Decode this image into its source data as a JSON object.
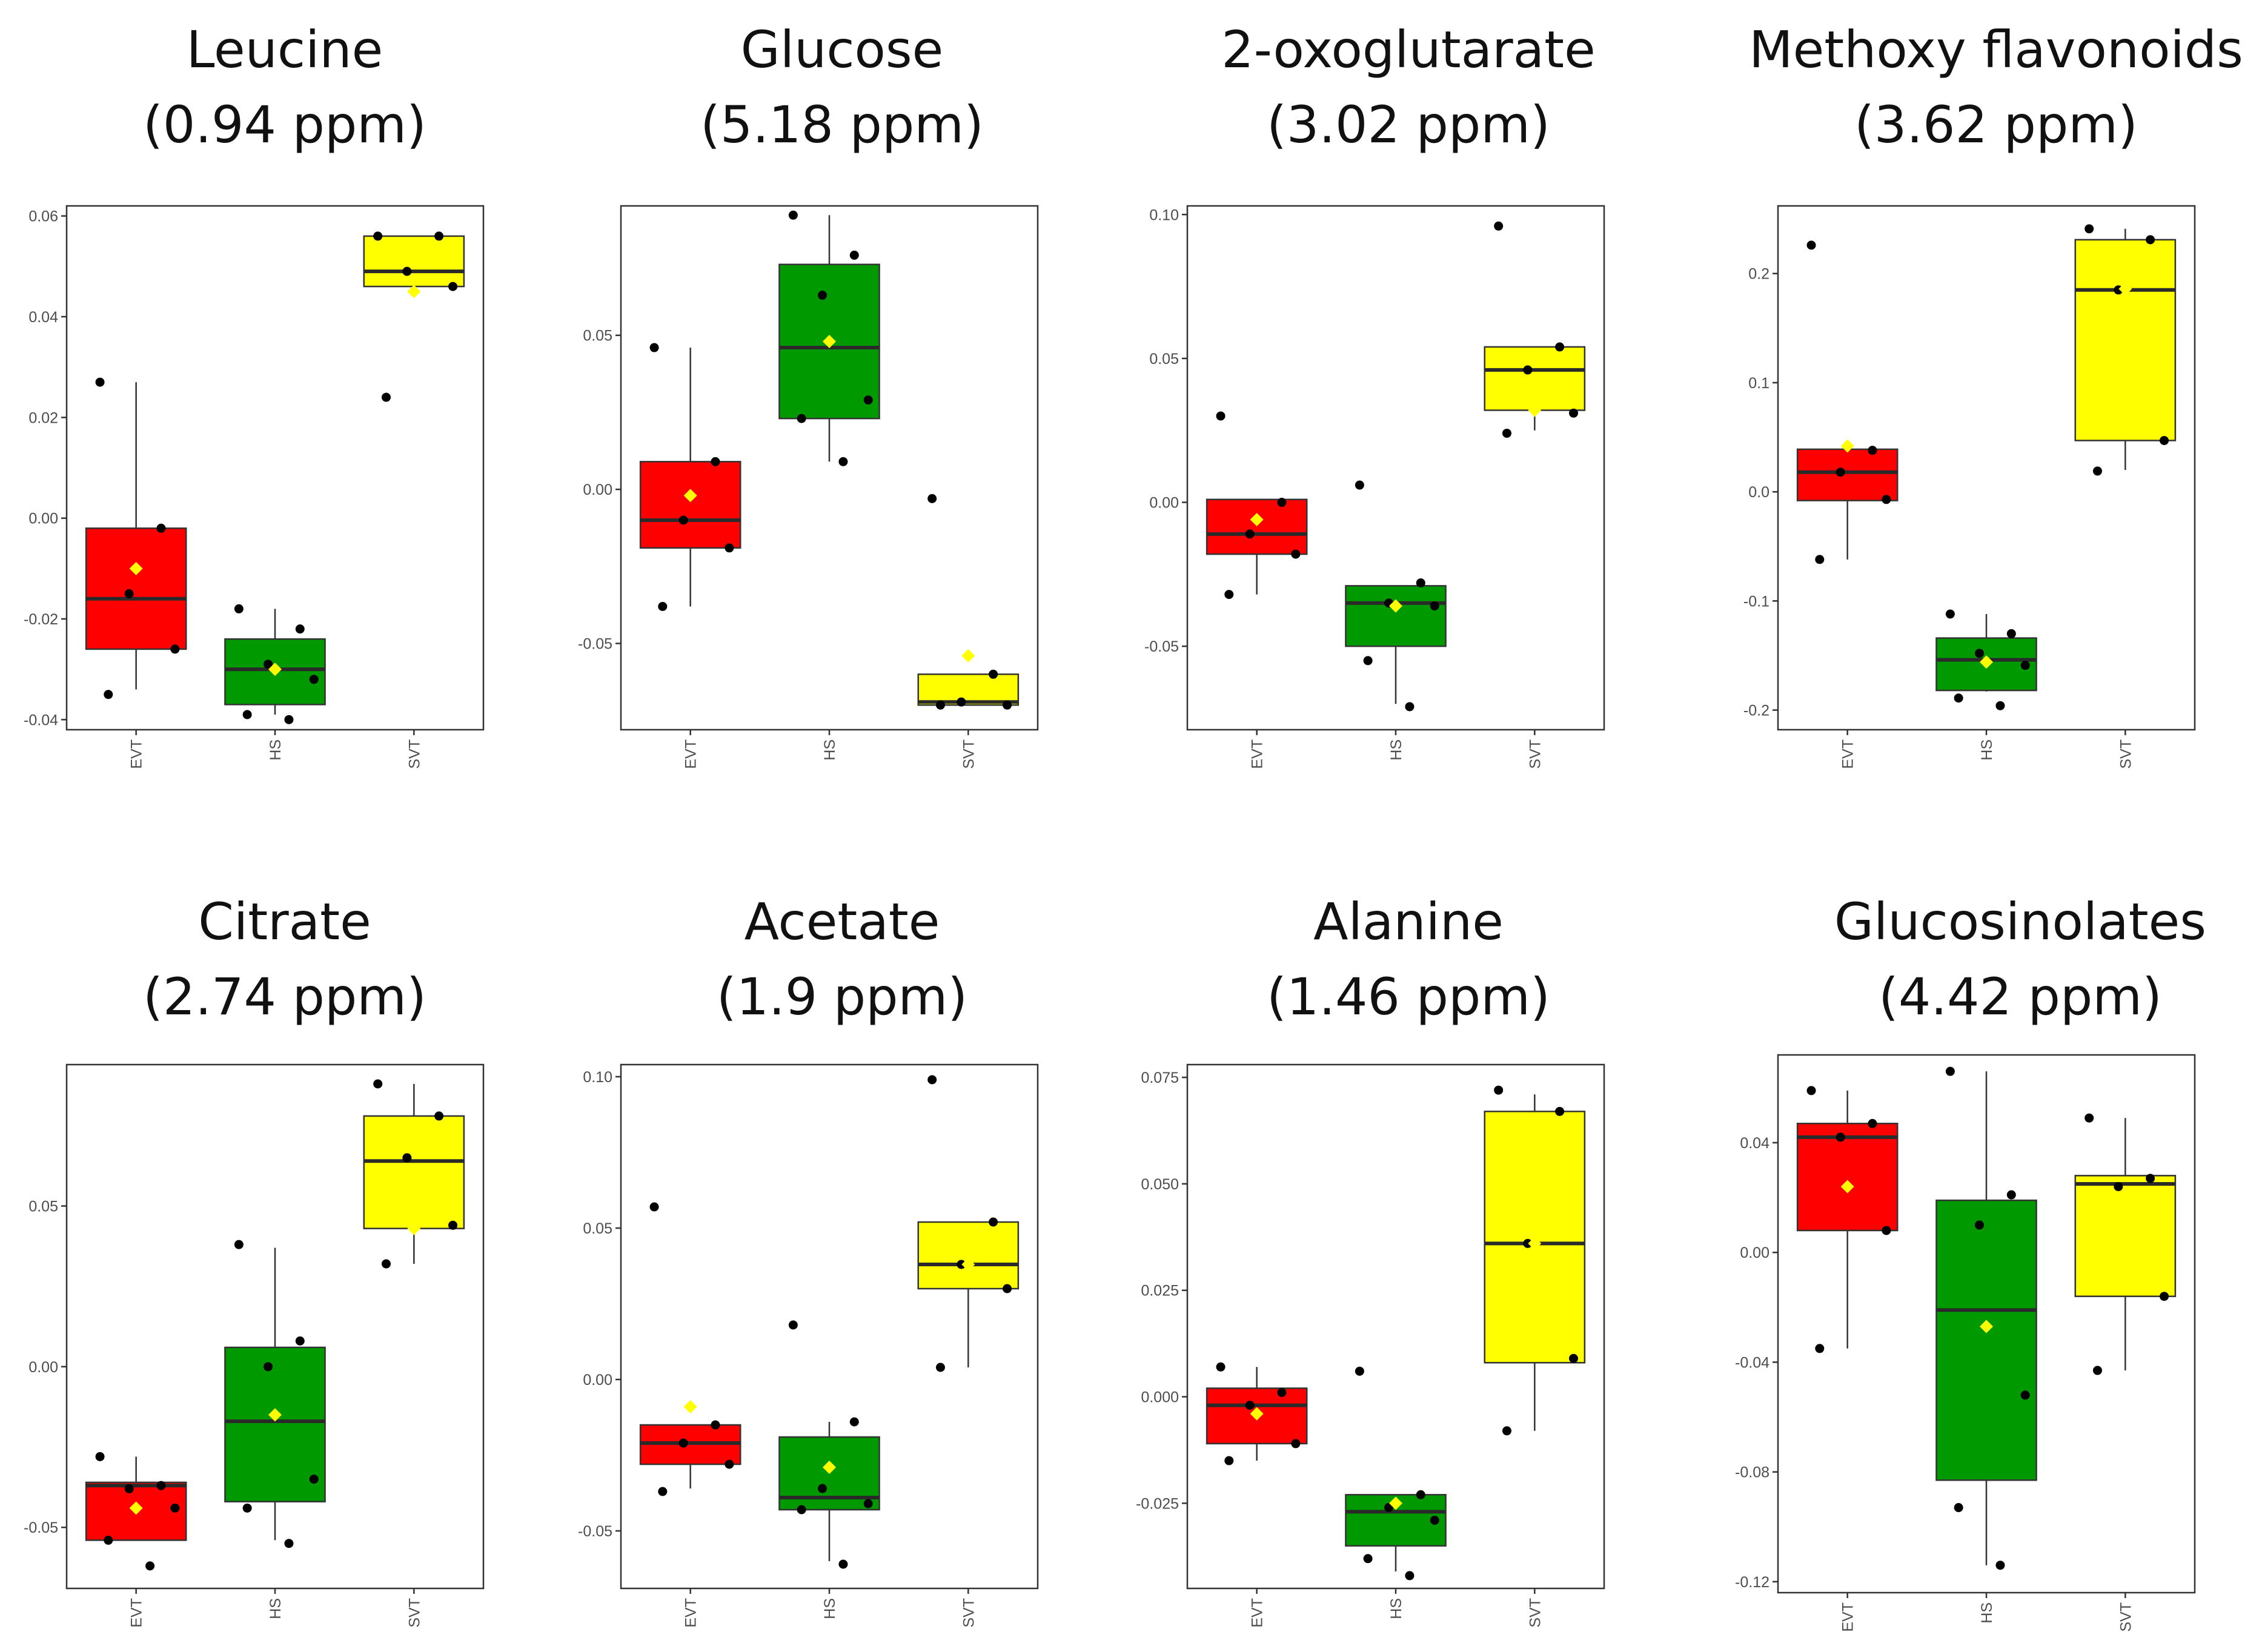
{
  "figure": {
    "colors": {
      "EVT": "#ff0000",
      "HS": "#009900",
      "SVT": "#ffff00",
      "mean_marker": "#ffff00",
      "points": "#000000"
    }
  },
  "chart_data": [
    {
      "type": "boxplot",
      "title": "Leucine",
      "subtitle": "(0.94 ppm)",
      "categories": [
        "EVT",
        "HS",
        "SVT"
      ],
      "ylim": [
        -0.042,
        0.062
      ],
      "y_ticks": [
        -0.04,
        -0.02,
        0.0,
        0.02,
        0.04,
        0.06
      ],
      "y_tick_labels": [
        "-0.04",
        "-0.02",
        "0.00",
        "0.02",
        "0.04",
        "0.06"
      ],
      "boxes": [
        {
          "group": "EVT",
          "whisker_low": -0.034,
          "q1": -0.026,
          "median": -0.016,
          "q3": -0.002,
          "whisker_high": 0.027,
          "mean": -0.01
        },
        {
          "group": "HS",
          "whisker_low": -0.039,
          "q1": -0.037,
          "median": -0.03,
          "q3": -0.024,
          "whisker_high": -0.018,
          "mean": -0.03
        },
        {
          "group": "SVT",
          "whisker_low": 0.046,
          "q1": 0.046,
          "median": 0.049,
          "q3": 0.056,
          "whisker_high": 0.056,
          "mean": 0.045
        }
      ],
      "points": [
        {
          "group": "EVT",
          "values": [
            0.027,
            -0.002,
            -0.015,
            -0.026,
            -0.035
          ]
        },
        {
          "group": "HS",
          "values": [
            -0.018,
            -0.022,
            -0.029,
            -0.032,
            -0.039,
            -0.04
          ]
        },
        {
          "group": "SVT",
          "values": [
            0.056,
            0.056,
            0.049,
            0.046,
            0.024
          ]
        }
      ]
    },
    {
      "type": "boxplot",
      "title": "Glucose",
      "subtitle": "(5.18 ppm)",
      "categories": [
        "EVT",
        "HS",
        "SVT"
      ],
      "ylim": [
        -0.078,
        0.092
      ],
      "y_ticks": [
        -0.05,
        0.0,
        0.05
      ],
      "y_tick_labels": [
        "-0.05",
        "0.00",
        "0.05"
      ],
      "boxes": [
        {
          "group": "EVT",
          "whisker_low": -0.038,
          "q1": -0.019,
          "median": -0.01,
          "q3": 0.009,
          "whisker_high": 0.046,
          "mean": -0.002
        },
        {
          "group": "HS",
          "whisker_low": 0.009,
          "q1": 0.023,
          "median": 0.046,
          "q3": 0.073,
          "whisker_high": 0.089,
          "mean": 0.048
        },
        {
          "group": "SVT",
          "whisker_low": -0.07,
          "q1": -0.07,
          "median": -0.069,
          "q3": -0.06,
          "whisker_high": -0.06,
          "mean": -0.054
        }
      ],
      "points": [
        {
          "group": "EVT",
          "values": [
            0.046,
            0.009,
            -0.01,
            -0.019,
            -0.038
          ]
        },
        {
          "group": "HS",
          "values": [
            0.089,
            0.076,
            0.063,
            0.029,
            0.023,
            0.009
          ]
        },
        {
          "group": "SVT",
          "values": [
            -0.003,
            -0.06,
            -0.069,
            -0.07,
            -0.07
          ]
        }
      ]
    },
    {
      "type": "boxplot",
      "title": "2-oxoglutarate",
      "subtitle": "(3.02 ppm)",
      "categories": [
        "EVT",
        "HS",
        "SVT"
      ],
      "ylim": [
        -0.079,
        0.103
      ],
      "y_ticks": [
        -0.05,
        0.0,
        0.05,
        0.1
      ],
      "y_tick_labels": [
        "-0.05",
        "0.00",
        "0.05",
        "0.10"
      ],
      "boxes": [
        {
          "group": "EVT",
          "whisker_low": -0.032,
          "q1": -0.018,
          "median": -0.011,
          "q3": 0.001,
          "whisker_high": 0.001,
          "mean": -0.006
        },
        {
          "group": "HS",
          "whisker_low": -0.07,
          "q1": -0.05,
          "median": -0.035,
          "q3": -0.029,
          "whisker_high": -0.029,
          "mean": -0.036
        },
        {
          "group": "SVT",
          "whisker_low": 0.025,
          "q1": 0.032,
          "median": 0.046,
          "q3": 0.054,
          "whisker_high": 0.054,
          "mean": 0.032
        }
      ],
      "points": [
        {
          "group": "EVT",
          "values": [
            0.03,
            0.0,
            -0.011,
            -0.018,
            -0.032
          ]
        },
        {
          "group": "HS",
          "values": [
            0.006,
            -0.028,
            -0.035,
            -0.036,
            -0.055,
            -0.071
          ]
        },
        {
          "group": "SVT",
          "values": [
            0.096,
            0.054,
            0.046,
            0.031,
            0.024
          ]
        }
      ]
    },
    {
      "type": "boxplot",
      "title": "Methoxy flavonoids",
      "subtitle": "(3.62 ppm)",
      "categories": [
        "EVT",
        "HS",
        "SVT"
      ],
      "ylim": [
        -0.218,
        0.262
      ],
      "y_ticks": [
        -0.2,
        -0.1,
        0.0,
        0.1,
        0.2
      ],
      "y_tick_labels": [
        "-0.2",
        "-0.1",
        "0.0",
        "0.1",
        "0.2"
      ],
      "boxes": [
        {
          "group": "EVT",
          "whisker_low": -0.062,
          "q1": -0.008,
          "median": 0.018,
          "q3": 0.039,
          "whisker_high": 0.039,
          "mean": 0.042
        },
        {
          "group": "HS",
          "whisker_low": -0.183,
          "q1": -0.182,
          "median": -0.154,
          "q3": -0.134,
          "whisker_high": -0.112,
          "mean": -0.156
        },
        {
          "group": "SVT",
          "whisker_low": 0.02,
          "q1": 0.047,
          "median": 0.185,
          "q3": 0.231,
          "whisker_high": 0.241,
          "mean": 0.186
        }
      ],
      "points": [
        {
          "group": "EVT",
          "values": [
            0.226,
            0.038,
            0.018,
            -0.007,
            -0.062
          ]
        },
        {
          "group": "HS",
          "values": [
            -0.112,
            -0.13,
            -0.148,
            -0.159,
            -0.189,
            -0.196
          ]
        },
        {
          "group": "SVT",
          "values": [
            0.241,
            0.231,
            0.185,
            0.047,
            0.019
          ]
        }
      ]
    },
    {
      "type": "boxplot",
      "title": "Citrate",
      "subtitle": "(2.74 ppm)",
      "categories": [
        "EVT",
        "HS",
        "SVT"
      ],
      "ylim": [
        -0.069,
        0.094
      ],
      "y_ticks": [
        -0.05,
        0.0,
        0.05
      ],
      "y_tick_labels": [
        "-0.05",
        "0.00",
        "0.05"
      ],
      "boxes": [
        {
          "group": "EVT",
          "whisker_low": -0.054,
          "q1": -0.054,
          "median": -0.037,
          "q3": -0.036,
          "whisker_high": -0.028,
          "mean": -0.044
        },
        {
          "group": "HS",
          "whisker_low": -0.054,
          "q1": -0.042,
          "median": -0.017,
          "q3": 0.006,
          "whisker_high": 0.037,
          "mean": -0.015
        },
        {
          "group": "SVT",
          "whisker_low": 0.032,
          "q1": 0.043,
          "median": 0.064,
          "q3": 0.078,
          "whisker_high": 0.088,
          "mean": 0.043
        }
      ],
      "points": [
        {
          "group": "EVT",
          "values": [
            -0.028,
            -0.037,
            -0.038,
            -0.044,
            -0.054,
            -0.062
          ]
        },
        {
          "group": "HS",
          "values": [
            0.038,
            0.008,
            0.0,
            -0.035,
            -0.044,
            -0.055
          ]
        },
        {
          "group": "SVT",
          "values": [
            0.088,
            0.078,
            0.065,
            0.044,
            0.032
          ]
        }
      ]
    },
    {
      "type": "boxplot",
      "title": "Acetate",
      "subtitle": "(1.9 ppm)",
      "categories": [
        "EVT",
        "HS",
        "SVT"
      ],
      "ylim": [
        -0.069,
        0.104
      ],
      "y_ticks": [
        -0.05,
        0.0,
        0.05,
        0.1
      ],
      "y_tick_labels": [
        "-0.05",
        "0.00",
        "0.05",
        "0.10"
      ],
      "boxes": [
        {
          "group": "EVT",
          "whisker_low": -0.036,
          "q1": -0.028,
          "median": -0.021,
          "q3": -0.015,
          "whisker_high": -0.015,
          "mean": -0.009
        },
        {
          "group": "HS",
          "whisker_low": -0.06,
          "q1": -0.043,
          "median": -0.039,
          "q3": -0.019,
          "whisker_high": -0.014,
          "mean": -0.029
        },
        {
          "group": "SVT",
          "whisker_low": 0.004,
          "q1": 0.03,
          "median": 0.038,
          "q3": 0.052,
          "whisker_high": 0.052,
          "mean": 0.038
        }
      ],
      "points": [
        {
          "group": "EVT",
          "values": [
            0.057,
            -0.015,
            -0.021,
            -0.028,
            -0.037
          ]
        },
        {
          "group": "HS",
          "values": [
            0.018,
            -0.014,
            -0.036,
            -0.041,
            -0.043,
            -0.061
          ]
        },
        {
          "group": "SVT",
          "values": [
            0.099,
            0.052,
            0.038,
            0.03,
            0.004
          ]
        }
      ]
    },
    {
      "type": "boxplot",
      "title": "Alanine",
      "subtitle": "(1.46 ppm)",
      "categories": [
        "EVT",
        "HS",
        "SVT"
      ],
      "ylim": [
        -0.045,
        0.078
      ],
      "y_ticks": [
        -0.025,
        0.0,
        0.025,
        0.05,
        0.075
      ],
      "y_tick_labels": [
        "-0.025",
        "0.000",
        "0.025",
        "0.050",
        "0.075"
      ],
      "boxes": [
        {
          "group": "EVT",
          "whisker_low": -0.015,
          "q1": -0.011,
          "median": -0.002,
          "q3": 0.002,
          "whisker_high": 0.007,
          "mean": -0.004
        },
        {
          "group": "HS",
          "whisker_low": -0.041,
          "q1": -0.035,
          "median": -0.027,
          "q3": -0.023,
          "whisker_high": -0.023,
          "mean": -0.025
        },
        {
          "group": "SVT",
          "whisker_low": -0.008,
          "q1": 0.008,
          "median": 0.036,
          "q3": 0.067,
          "whisker_high": 0.071,
          "mean": 0.036
        }
      ],
      "points": [
        {
          "group": "EVT",
          "values": [
            0.007,
            0.001,
            -0.002,
            -0.011,
            -0.015
          ]
        },
        {
          "group": "HS",
          "values": [
            0.006,
            -0.023,
            -0.026,
            -0.029,
            -0.038,
            -0.042
          ]
        },
        {
          "group": "SVT",
          "values": [
            0.072,
            0.067,
            0.036,
            0.009,
            -0.008
          ]
        }
      ]
    },
    {
      "type": "boxplot",
      "title": "Glucosinolates",
      "subtitle": "(4.42 ppm)",
      "categories": [
        "EVT",
        "HS",
        "SVT"
      ],
      "ylim": [
        -0.124,
        0.072
      ],
      "y_ticks": [
        -0.12,
        -0.08,
        -0.04,
        0.0,
        0.04
      ],
      "y_tick_labels": [
        "-0.12",
        "-0.08",
        "-0.04",
        "0.00",
        "0.04"
      ],
      "boxes": [
        {
          "group": "EVT",
          "whisker_low": -0.035,
          "q1": 0.008,
          "median": 0.042,
          "q3": 0.047,
          "whisker_high": 0.059,
          "mean": 0.024
        },
        {
          "group": "HS",
          "whisker_low": -0.114,
          "q1": -0.083,
          "median": -0.021,
          "q3": 0.019,
          "whisker_high": 0.066,
          "mean": -0.027
        },
        {
          "group": "SVT",
          "whisker_low": -0.043,
          "q1": -0.016,
          "median": 0.025,
          "q3": 0.028,
          "whisker_high": 0.049,
          "mean": 0.009
        }
      ],
      "points": [
        {
          "group": "EVT",
          "values": [
            0.059,
            0.047,
            0.042,
            0.008,
            -0.035
          ]
        },
        {
          "group": "HS",
          "values": [
            0.066,
            0.021,
            0.01,
            -0.052,
            -0.093,
            -0.114
          ]
        },
        {
          "group": "SVT",
          "values": [
            0.049,
            0.027,
            0.024,
            -0.016,
            -0.043
          ]
        }
      ]
    }
  ]
}
